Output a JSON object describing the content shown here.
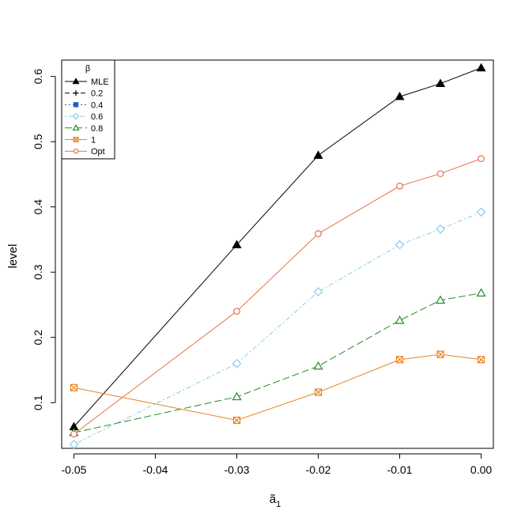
{
  "chart_data": {
    "type": "line",
    "title": "",
    "xlabel": "ã",
    "xlabel_subscript": "1",
    "ylabel": "level",
    "xlim": [
      -0.0515,
      0.0015
    ],
    "ylim": [
      0.03,
      0.625
    ],
    "x_ticks": [
      -0.05,
      -0.04,
      -0.03,
      -0.02,
      -0.01,
      0.0
    ],
    "x_tick_labels": [
      "-0.05",
      "-0.04",
      "-0.03",
      "-0.02",
      "-0.01",
      "0.00"
    ],
    "y_ticks": [
      0.1,
      0.2,
      0.3,
      0.4,
      0.5,
      0.6
    ],
    "y_tick_labels": [
      "0.1",
      "0.2",
      "0.3",
      "0.4",
      "0.5",
      "0.6"
    ],
    "grid": false,
    "legend": {
      "title": "β",
      "placement": "top-left"
    },
    "series": [
      {
        "name": "MLE",
        "color": "#000000",
        "marker": "filled-triangle",
        "dash": "solid",
        "x": [
          -0.05,
          -0.03,
          -0.02,
          -0.01,
          -0.005,
          0.0
        ],
        "values": [
          0.063,
          0.342,
          0.479,
          0.569,
          0.589,
          0.613
        ]
      },
      {
        "name": "0.2",
        "color": "#000000",
        "marker": "plus",
        "dash": "dashed",
        "x": [],
        "values": []
      },
      {
        "name": "0.4",
        "color": "#1f5fbf",
        "marker": "filled-square",
        "dash": "dotted",
        "x": [],
        "values": []
      },
      {
        "name": "0.6",
        "color": "#87ceeb",
        "marker": "diamond",
        "dash": "dotdash",
        "x": [
          -0.05,
          -0.03,
          -0.02,
          -0.01,
          -0.005,
          0.0
        ],
        "values": [
          0.036,
          0.16,
          0.27,
          0.342,
          0.366,
          0.392
        ]
      },
      {
        "name": "0.8",
        "color": "#228b22",
        "marker": "triangle",
        "dash": "longdash",
        "x": [
          -0.05,
          -0.03,
          -0.02,
          -0.01,
          -0.005,
          0.0
        ],
        "values": [
          0.054,
          0.109,
          0.156,
          0.226,
          0.257,
          0.268
        ]
      },
      {
        "name": "1",
        "color": "#e8821e",
        "marker": "boxed-x",
        "dash": "solid",
        "x": [
          -0.05,
          -0.03,
          -0.02,
          -0.01,
          -0.005,
          0.0
        ],
        "values": [
          0.123,
          0.073,
          0.116,
          0.166,
          0.174,
          0.166
        ]
      },
      {
        "name": "Opt",
        "color": "#e8704a",
        "marker": "circle",
        "dash": "solid",
        "x": [
          -0.05,
          -0.03,
          -0.02,
          -0.01,
          -0.005,
          0.0
        ],
        "values": [
          0.052,
          0.24,
          0.359,
          0.432,
          0.451,
          0.474
        ]
      }
    ]
  }
}
